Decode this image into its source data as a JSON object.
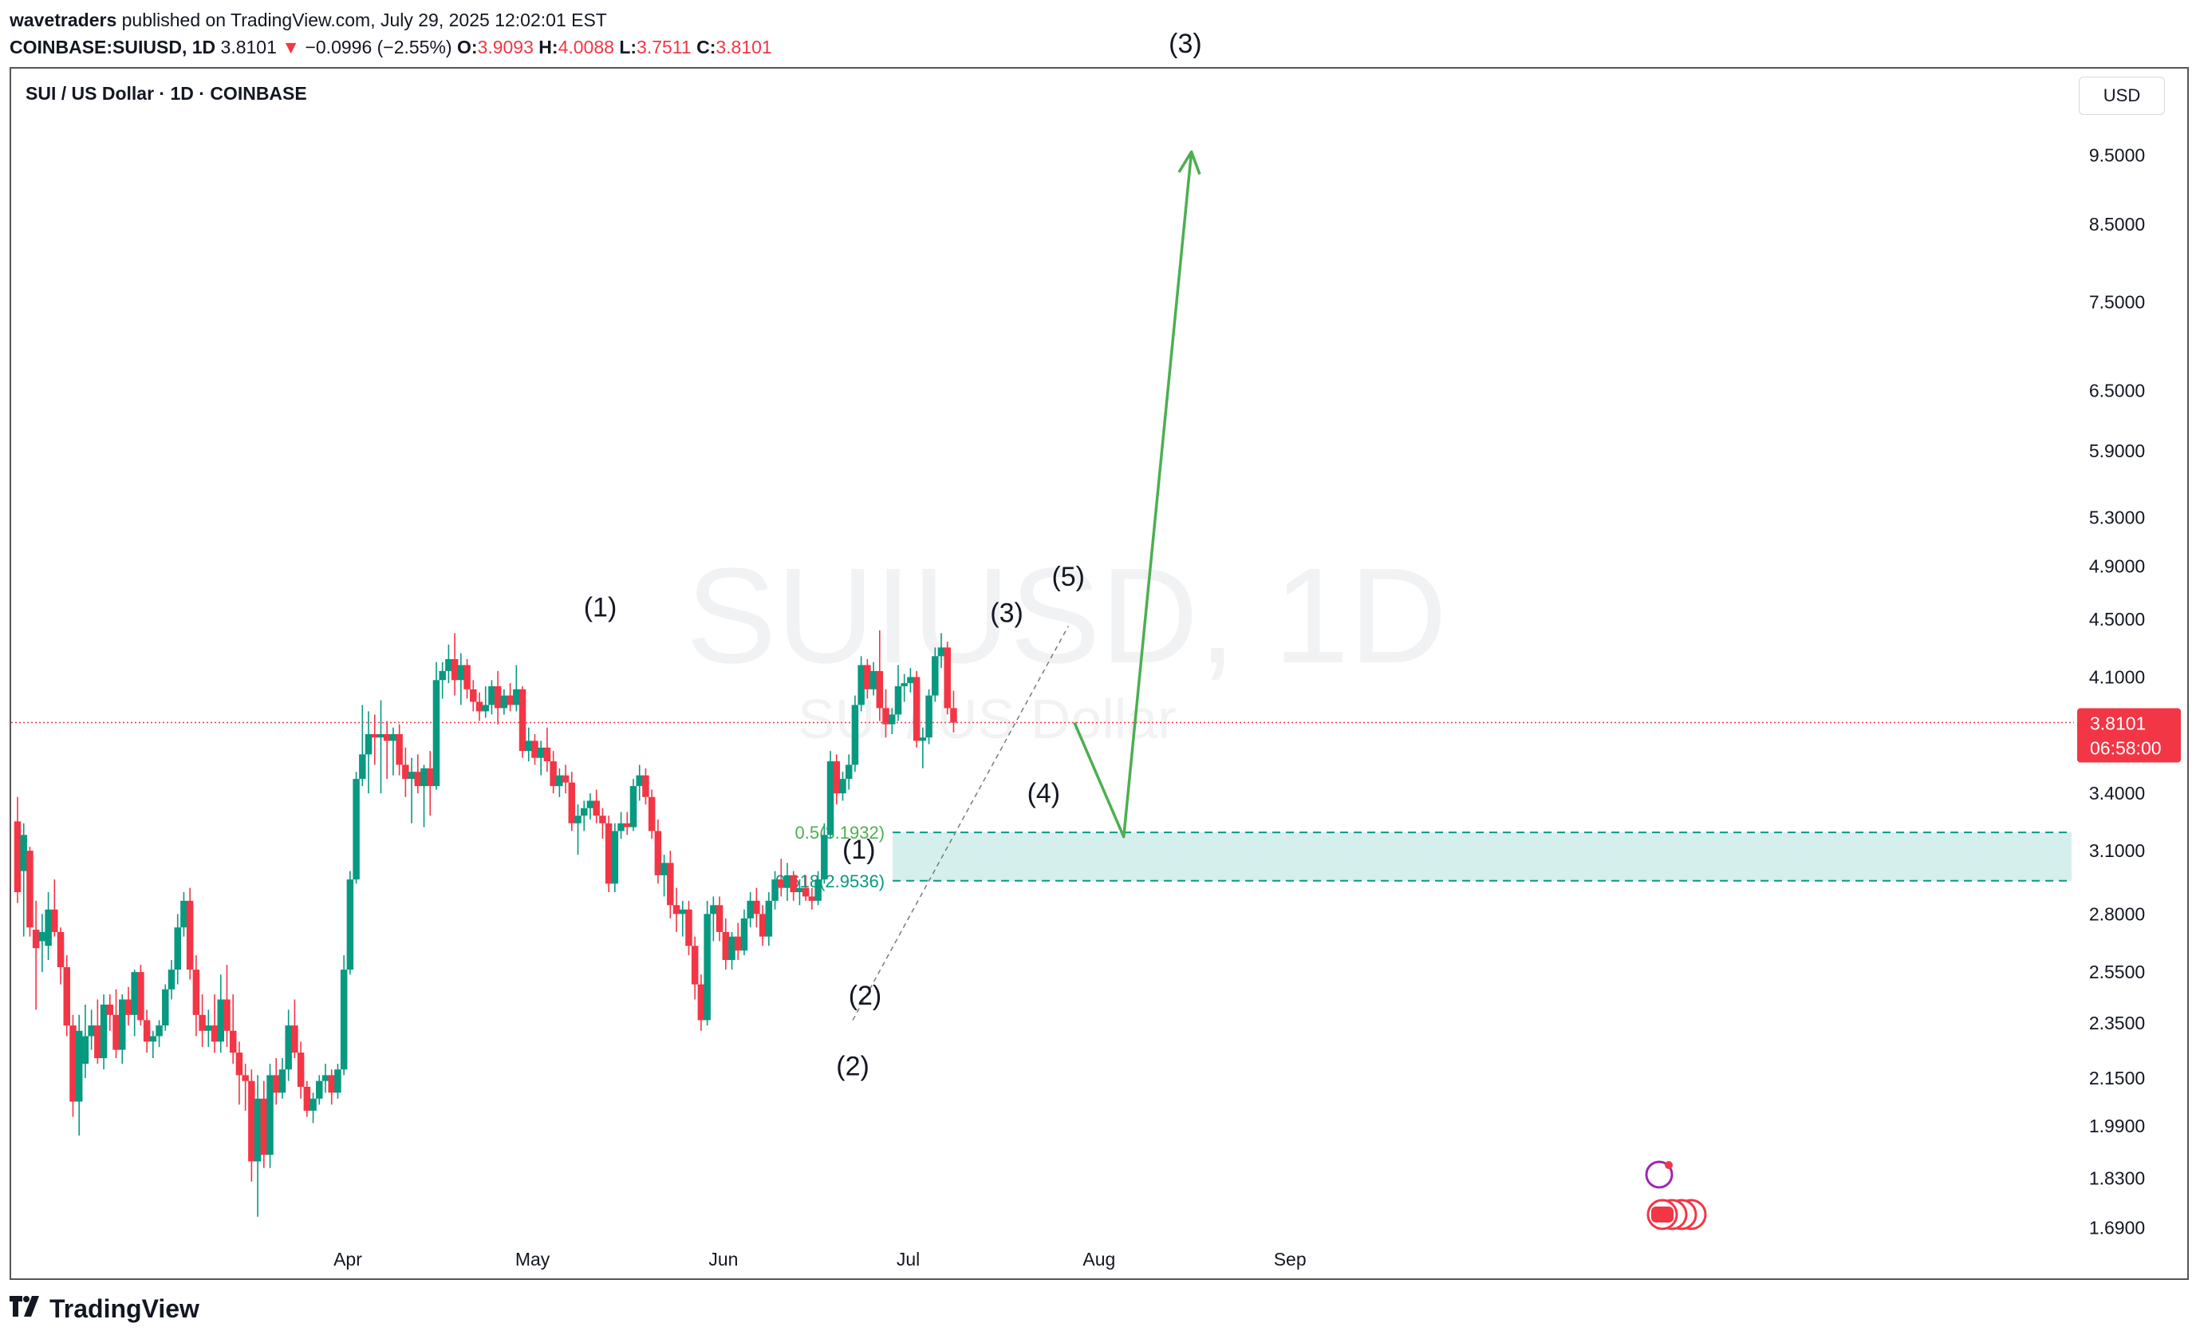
{
  "header": {
    "publisher": "wavetraders",
    "published_text": "published on TradingView.com, July 29, 2025 12:02:01 EST",
    "symbol": "COINBASE:SUIUSD, 1D",
    "last": "3.8101",
    "change_arrow": "▼",
    "change": "−0.0996 (−2.55%)",
    "o_label": "O:",
    "o": "3.9093",
    "h_label": "H:",
    "h": "4.0088",
    "l_label": "L:",
    "l": "3.7511",
    "c_label": "C:",
    "c": "3.8101"
  },
  "chart_title": "SUI / US Dollar · 1D · COINBASE",
  "currency_button": "USD",
  "watermark": {
    "symbol": "SUIUSD, 1D",
    "name": "SUI / US Dollar"
  },
  "price_badge": {
    "price": "3.8101",
    "countdown": "06:58:00"
  },
  "footer": {
    "brand": "TradingView",
    "logo_icon": "tradingview-logo-icon"
  },
  "colors": {
    "up": "#089981",
    "down": "#f23645",
    "projection": "#4caf50",
    "zone": "#d5efec",
    "fib": "#4caf50"
  },
  "chart_data": {
    "type": "candlestick",
    "title": "SUI / US Dollar · 1D · COINBASE",
    "y_scale": "log",
    "y_ticks": [
      "9.5000",
      "8.5000",
      "7.5000",
      "6.5000",
      "5.9000",
      "5.3000",
      "4.9000",
      "4.5000",
      "4.1000",
      "3.4000",
      "3.1000",
      "2.8000",
      "2.5500",
      "2.3500",
      "2.1500",
      "1.9900",
      "1.8300",
      "1.6900"
    ],
    "x_ticks": [
      "Apr",
      "May",
      "Jun",
      "Jul",
      "Aug",
      "Sep"
    ],
    "current_price": 3.8101,
    "wave_labels": [
      {
        "text": "(1)",
        "date": "2025-05-12",
        "price": 4.52
      },
      {
        "text": "(2)",
        "date": "2025-06-22",
        "price": 2.16
      },
      {
        "text": "(1)",
        "date": "2025-06-23",
        "price": 3.06
      },
      {
        "text": "(2)",
        "date": "2025-06-24",
        "price": 2.42
      },
      {
        "text": "(3)",
        "date": "2025-07-17",
        "price": 4.48
      },
      {
        "text": "(4)",
        "date": "2025-07-23",
        "price": 3.35
      },
      {
        "text": "(5)",
        "date": "2025-07-27",
        "price": 4.75
      },
      {
        "text": "(3)",
        "date": "2025-08-15",
        "price": 11.2
      }
    ],
    "fib_levels": [
      {
        "label": "0.5(3.1932)",
        "ratio": 0.5,
        "price": 3.1932
      },
      {
        "label": "0.618(2.9536)",
        "ratio": 0.618,
        "price": 2.9536
      }
    ],
    "target_zone": {
      "from_date": "2025-06-22",
      "to_date": "2025-09-02",
      "top": 3.1932,
      "bottom": 2.9536
    },
    "projection": [
      {
        "date": "2025-07-28",
        "price": 3.81
      },
      {
        "date": "2025-08-05",
        "price": 3.17
      },
      {
        "date": "2025-08-16",
        "price": 9.55
      }
    ],
    "wave_trendline": [
      {
        "date": "2025-06-22",
        "price": 2.36
      },
      {
        "date": "2025-07-27",
        "price": 4.45
      }
    ],
    "candles": [
      {
        "o": 3.25,
        "h": 3.38,
        "l": 2.85,
        "c": 2.9
      },
      {
        "o": 3.0,
        "h": 3.24,
        "l": 2.7,
        "c": 3.18
      },
      {
        "o": 3.1,
        "h": 3.12,
        "l": 2.7,
        "c": 2.74
      },
      {
        "o": 2.73,
        "h": 2.86,
        "l": 2.4,
        "c": 2.65
      },
      {
        "o": 2.68,
        "h": 2.8,
        "l": 2.55,
        "c": 2.72
      },
      {
        "o": 2.66,
        "h": 2.9,
        "l": 2.6,
        "c": 2.82
      },
      {
        "o": 2.82,
        "h": 2.96,
        "l": 2.7,
        "c": 2.72
      },
      {
        "o": 2.72,
        "h": 2.74,
        "l": 2.5,
        "c": 2.57
      },
      {
        "o": 2.57,
        "h": 2.62,
        "l": 2.3,
        "c": 2.34
      },
      {
        "o": 2.34,
        "h": 2.38,
        "l": 2.02,
        "c": 2.07
      },
      {
        "o": 2.07,
        "h": 2.38,
        "l": 1.96,
        "c": 2.32
      },
      {
        "o": 2.2,
        "h": 2.42,
        "l": 2.15,
        "c": 2.3
      },
      {
        "o": 2.3,
        "h": 2.4,
        "l": 2.25,
        "c": 2.34
      },
      {
        "o": 2.34,
        "h": 2.44,
        "l": 2.2,
        "c": 2.22
      },
      {
        "o": 2.22,
        "h": 2.46,
        "l": 2.18,
        "c": 2.42
      },
      {
        "o": 2.42,
        "h": 2.46,
        "l": 2.32,
        "c": 2.38
      },
      {
        "o": 2.38,
        "h": 2.48,
        "l": 2.22,
        "c": 2.25
      },
      {
        "o": 2.25,
        "h": 2.46,
        "l": 2.2,
        "c": 2.44
      },
      {
        "o": 2.44,
        "h": 2.49,
        "l": 2.34,
        "c": 2.38
      },
      {
        "o": 2.38,
        "h": 2.56,
        "l": 2.3,
        "c": 2.55
      },
      {
        "o": 2.55,
        "h": 2.58,
        "l": 2.34,
        "c": 2.36
      },
      {
        "o": 2.36,
        "h": 2.4,
        "l": 2.24,
        "c": 2.28
      },
      {
        "o": 2.28,
        "h": 2.32,
        "l": 2.22,
        "c": 2.3
      },
      {
        "o": 2.3,
        "h": 2.36,
        "l": 2.26,
        "c": 2.34
      },
      {
        "o": 2.34,
        "h": 2.5,
        "l": 2.32,
        "c": 2.48
      },
      {
        "o": 2.48,
        "h": 2.6,
        "l": 2.44,
        "c": 2.56
      },
      {
        "o": 2.56,
        "h": 2.8,
        "l": 2.5,
        "c": 2.74
      },
      {
        "o": 2.74,
        "h": 2.9,
        "l": 2.7,
        "c": 2.86
      },
      {
        "o": 2.86,
        "h": 2.92,
        "l": 2.52,
        "c": 2.56
      },
      {
        "o": 2.56,
        "h": 2.62,
        "l": 2.3,
        "c": 2.38
      },
      {
        "o": 2.38,
        "h": 2.46,
        "l": 2.26,
        "c": 2.32
      },
      {
        "o": 2.32,
        "h": 2.4,
        "l": 2.26,
        "c": 2.34
      },
      {
        "o": 2.34,
        "h": 2.46,
        "l": 2.24,
        "c": 2.28
      },
      {
        "o": 2.28,
        "h": 2.54,
        "l": 2.24,
        "c": 2.44
      },
      {
        "o": 2.44,
        "h": 2.58,
        "l": 2.26,
        "c": 2.32
      },
      {
        "o": 2.32,
        "h": 2.46,
        "l": 2.2,
        "c": 2.24
      },
      {
        "o": 2.24,
        "h": 2.28,
        "l": 2.06,
        "c": 2.16
      },
      {
        "o": 2.16,
        "h": 2.2,
        "l": 2.04,
        "c": 2.14
      },
      {
        "o": 2.14,
        "h": 2.18,
        "l": 1.82,
        "c": 1.88
      },
      {
        "o": 1.88,
        "h": 2.16,
        "l": 1.72,
        "c": 2.08
      },
      {
        "o": 2.08,
        "h": 2.14,
        "l": 1.86,
        "c": 1.9
      },
      {
        "o": 1.9,
        "h": 2.2,
        "l": 1.86,
        "c": 2.16
      },
      {
        "o": 2.16,
        "h": 2.22,
        "l": 2.06,
        "c": 2.1
      },
      {
        "o": 2.1,
        "h": 2.22,
        "l": 2.08,
        "c": 2.18
      },
      {
        "o": 2.18,
        "h": 2.4,
        "l": 2.14,
        "c": 2.34
      },
      {
        "o": 2.34,
        "h": 2.44,
        "l": 2.22,
        "c": 2.24
      },
      {
        "o": 2.24,
        "h": 2.28,
        "l": 2.08,
        "c": 2.12
      },
      {
        "o": 2.12,
        "h": 2.14,
        "l": 2.02,
        "c": 2.04
      },
      {
        "o": 2.04,
        "h": 2.1,
        "l": 2.0,
        "c": 2.08
      },
      {
        "o": 2.08,
        "h": 2.16,
        "l": 2.06,
        "c": 2.14
      },
      {
        "o": 2.14,
        "h": 2.2,
        "l": 2.1,
        "c": 2.16
      },
      {
        "o": 2.16,
        "h": 2.18,
        "l": 2.06,
        "c": 2.1
      },
      {
        "o": 2.1,
        "h": 2.2,
        "l": 2.08,
        "c": 2.18
      },
      {
        "o": 2.18,
        "h": 2.62,
        "l": 2.16,
        "c": 2.56
      },
      {
        "o": 2.56,
        "h": 3.0,
        "l": 2.54,
        "c": 2.96
      },
      {
        "o": 2.96,
        "h": 3.52,
        "l": 2.94,
        "c": 3.48
      },
      {
        "o": 3.48,
        "h": 3.92,
        "l": 3.44,
        "c": 3.62
      },
      {
        "o": 3.62,
        "h": 3.88,
        "l": 3.4,
        "c": 3.74
      },
      {
        "o": 3.74,
        "h": 3.86,
        "l": 3.56,
        "c": 3.72
      },
      {
        "o": 3.72,
        "h": 3.95,
        "l": 3.4,
        "c": 3.74
      },
      {
        "o": 3.74,
        "h": 3.82,
        "l": 3.48,
        "c": 3.7
      },
      {
        "o": 3.7,
        "h": 3.78,
        "l": 3.5,
        "c": 3.74
      },
      {
        "o": 3.74,
        "h": 3.8,
        "l": 3.5,
        "c": 3.56
      },
      {
        "o": 3.56,
        "h": 3.66,
        "l": 3.38,
        "c": 3.48
      },
      {
        "o": 3.48,
        "h": 3.6,
        "l": 3.24,
        "c": 3.52
      },
      {
        "o": 3.52,
        "h": 3.62,
        "l": 3.4,
        "c": 3.44
      },
      {
        "o": 3.44,
        "h": 3.56,
        "l": 3.22,
        "c": 3.54
      },
      {
        "o": 3.54,
        "h": 3.64,
        "l": 3.28,
        "c": 3.44
      },
      {
        "o": 3.44,
        "h": 4.2,
        "l": 3.42,
        "c": 4.08
      },
      {
        "o": 4.08,
        "h": 4.2,
        "l": 3.96,
        "c": 4.14
      },
      {
        "o": 4.14,
        "h": 4.32,
        "l": 4.06,
        "c": 4.22
      },
      {
        "o": 4.22,
        "h": 4.4,
        "l": 3.98,
        "c": 4.08
      },
      {
        "o": 4.08,
        "h": 4.26,
        "l": 3.92,
        "c": 4.18
      },
      {
        "o": 4.18,
        "h": 4.22,
        "l": 3.96,
        "c": 4.02
      },
      {
        "o": 4.02,
        "h": 4.08,
        "l": 3.88,
        "c": 3.94
      },
      {
        "o": 3.94,
        "h": 4.0,
        "l": 3.82,
        "c": 3.88
      },
      {
        "o": 3.88,
        "h": 4.04,
        "l": 3.84,
        "c": 3.92
      },
      {
        "o": 3.92,
        "h": 4.08,
        "l": 3.86,
        "c": 4.04
      },
      {
        "o": 4.04,
        "h": 4.14,
        "l": 3.8,
        "c": 3.9
      },
      {
        "o": 3.9,
        "h": 4.02,
        "l": 3.86,
        "c": 3.98
      },
      {
        "o": 3.98,
        "h": 4.06,
        "l": 3.88,
        "c": 3.92
      },
      {
        "o": 3.92,
        "h": 4.18,
        "l": 3.88,
        "c": 4.02
      },
      {
        "o": 4.02,
        "h": 4.04,
        "l": 3.6,
        "c": 3.64
      },
      {
        "o": 3.64,
        "h": 3.78,
        "l": 3.58,
        "c": 3.7
      },
      {
        "o": 3.7,
        "h": 3.74,
        "l": 3.56,
        "c": 3.6
      },
      {
        "o": 3.6,
        "h": 3.7,
        "l": 3.5,
        "c": 3.66
      },
      {
        "o": 3.66,
        "h": 3.78,
        "l": 3.52,
        "c": 3.58
      },
      {
        "o": 3.58,
        "h": 3.64,
        "l": 3.4,
        "c": 3.44
      },
      {
        "o": 3.44,
        "h": 3.54,
        "l": 3.38,
        "c": 3.5
      },
      {
        "o": 3.5,
        "h": 3.56,
        "l": 3.4,
        "c": 3.46
      },
      {
        "o": 3.46,
        "h": 3.52,
        "l": 3.2,
        "c": 3.24
      },
      {
        "o": 3.24,
        "h": 3.34,
        "l": 3.08,
        "c": 3.28
      },
      {
        "o": 3.28,
        "h": 3.36,
        "l": 3.2,
        "c": 3.32
      },
      {
        "o": 3.32,
        "h": 3.4,
        "l": 3.26,
        "c": 3.36
      },
      {
        "o": 3.36,
        "h": 3.42,
        "l": 3.24,
        "c": 3.28
      },
      {
        "o": 3.28,
        "h": 3.32,
        "l": 3.16,
        "c": 3.24
      },
      {
        "o": 3.24,
        "h": 3.28,
        "l": 2.9,
        "c": 2.94
      },
      {
        "o": 2.94,
        "h": 3.24,
        "l": 2.9,
        "c": 3.2
      },
      {
        "o": 3.2,
        "h": 3.3,
        "l": 3.16,
        "c": 3.24
      },
      {
        "o": 3.24,
        "h": 3.3,
        "l": 3.18,
        "c": 3.22
      },
      {
        "o": 3.22,
        "h": 3.48,
        "l": 3.2,
        "c": 3.44
      },
      {
        "o": 3.44,
        "h": 3.56,
        "l": 3.36,
        "c": 3.5
      },
      {
        "o": 3.5,
        "h": 3.54,
        "l": 3.34,
        "c": 3.38
      },
      {
        "o": 3.38,
        "h": 3.42,
        "l": 3.16,
        "c": 3.2
      },
      {
        "o": 3.2,
        "h": 3.26,
        "l": 2.94,
        "c": 2.98
      },
      {
        "o": 2.98,
        "h": 3.08,
        "l": 2.88,
        "c": 3.04
      },
      {
        "o": 3.04,
        "h": 3.1,
        "l": 2.78,
        "c": 2.84
      },
      {
        "o": 2.84,
        "h": 2.92,
        "l": 2.72,
        "c": 2.8
      },
      {
        "o": 2.8,
        "h": 2.86,
        "l": 2.7,
        "c": 2.82
      },
      {
        "o": 2.82,
        "h": 2.86,
        "l": 2.62,
        "c": 2.66
      },
      {
        "o": 2.66,
        "h": 2.7,
        "l": 2.44,
        "c": 2.5
      },
      {
        "o": 2.5,
        "h": 2.54,
        "l": 2.32,
        "c": 2.36
      },
      {
        "o": 2.36,
        "h": 2.86,
        "l": 2.34,
        "c": 2.8
      },
      {
        "o": 2.8,
        "h": 2.88,
        "l": 2.68,
        "c": 2.84
      },
      {
        "o": 2.84,
        "h": 2.88,
        "l": 2.68,
        "c": 2.72
      },
      {
        "o": 2.72,
        "h": 2.78,
        "l": 2.56,
        "c": 2.6
      },
      {
        "o": 2.6,
        "h": 2.72,
        "l": 2.56,
        "c": 2.7
      },
      {
        "o": 2.7,
        "h": 2.76,
        "l": 2.6,
        "c": 2.64
      },
      {
        "o": 2.64,
        "h": 2.82,
        "l": 2.62,
        "c": 2.78
      },
      {
        "o": 2.78,
        "h": 2.9,
        "l": 2.74,
        "c": 2.86
      },
      {
        "o": 2.86,
        "h": 2.92,
        "l": 2.74,
        "c": 2.8
      },
      {
        "o": 2.8,
        "h": 2.84,
        "l": 2.66,
        "c": 2.7
      },
      {
        "o": 2.7,
        "h": 2.9,
        "l": 2.66,
        "c": 2.86
      },
      {
        "o": 2.86,
        "h": 3.0,
        "l": 2.82,
        "c": 2.96
      },
      {
        "o": 2.96,
        "h": 3.06,
        "l": 2.88,
        "c": 2.92
      },
      {
        "o": 2.92,
        "h": 3.04,
        "l": 2.86,
        "c": 2.98
      },
      {
        "o": 2.98,
        "h": 3.0,
        "l": 2.86,
        "c": 2.9
      },
      {
        "o": 2.9,
        "h": 2.96,
        "l": 2.84,
        "c": 2.92
      },
      {
        "o": 2.92,
        "h": 2.98,
        "l": 2.86,
        "c": 2.88
      },
      {
        "o": 2.88,
        "h": 2.92,
        "l": 2.82,
        "c": 2.86
      },
      {
        "o": 2.86,
        "h": 3.0,
        "l": 2.84,
        "c": 2.96
      },
      {
        "o": 2.96,
        "h": 3.24,
        "l": 2.94,
        "c": 3.18
      },
      {
        "o": 3.18,
        "h": 3.64,
        "l": 3.16,
        "c": 3.58
      },
      {
        "o": 3.58,
        "h": 3.62,
        "l": 3.34,
        "c": 3.4
      },
      {
        "o": 3.4,
        "h": 3.52,
        "l": 3.36,
        "c": 3.48
      },
      {
        "o": 3.48,
        "h": 3.62,
        "l": 3.42,
        "c": 3.56
      },
      {
        "o": 3.56,
        "h": 3.98,
        "l": 3.52,
        "c": 3.92
      },
      {
        "o": 3.92,
        "h": 4.24,
        "l": 3.88,
        "c": 4.18
      },
      {
        "o": 4.18,
        "h": 4.22,
        "l": 3.96,
        "c": 4.02
      },
      {
        "o": 4.02,
        "h": 4.2,
        "l": 3.98,
        "c": 4.14
      },
      {
        "o": 4.14,
        "h": 4.42,
        "l": 3.82,
        "c": 3.9
      },
      {
        "o": 3.9,
        "h": 4.02,
        "l": 3.72,
        "c": 3.8
      },
      {
        "o": 3.8,
        "h": 3.9,
        "l": 3.74,
        "c": 3.86
      },
      {
        "o": 3.86,
        "h": 4.18,
        "l": 3.82,
        "c": 4.04
      },
      {
        "o": 4.04,
        "h": 4.12,
        "l": 3.94,
        "c": 4.06
      },
      {
        "o": 4.06,
        "h": 4.16,
        "l": 4.0,
        "c": 4.1
      },
      {
        "o": 4.1,
        "h": 4.14,
        "l": 3.66,
        "c": 3.7
      },
      {
        "o": 3.7,
        "h": 3.78,
        "l": 3.54,
        "c": 3.72
      },
      {
        "o": 3.72,
        "h": 4.02,
        "l": 3.68,
        "c": 3.98
      },
      {
        "o": 3.98,
        "h": 4.3,
        "l": 3.94,
        "c": 4.24
      },
      {
        "o": 4.24,
        "h": 4.4,
        "l": 4.16,
        "c": 4.3
      },
      {
        "o": 4.3,
        "h": 4.34,
        "l": 3.86,
        "c": 3.9
      },
      {
        "o": 3.9,
        "h": 4.01,
        "l": 3.75,
        "c": 3.81
      }
    ]
  }
}
